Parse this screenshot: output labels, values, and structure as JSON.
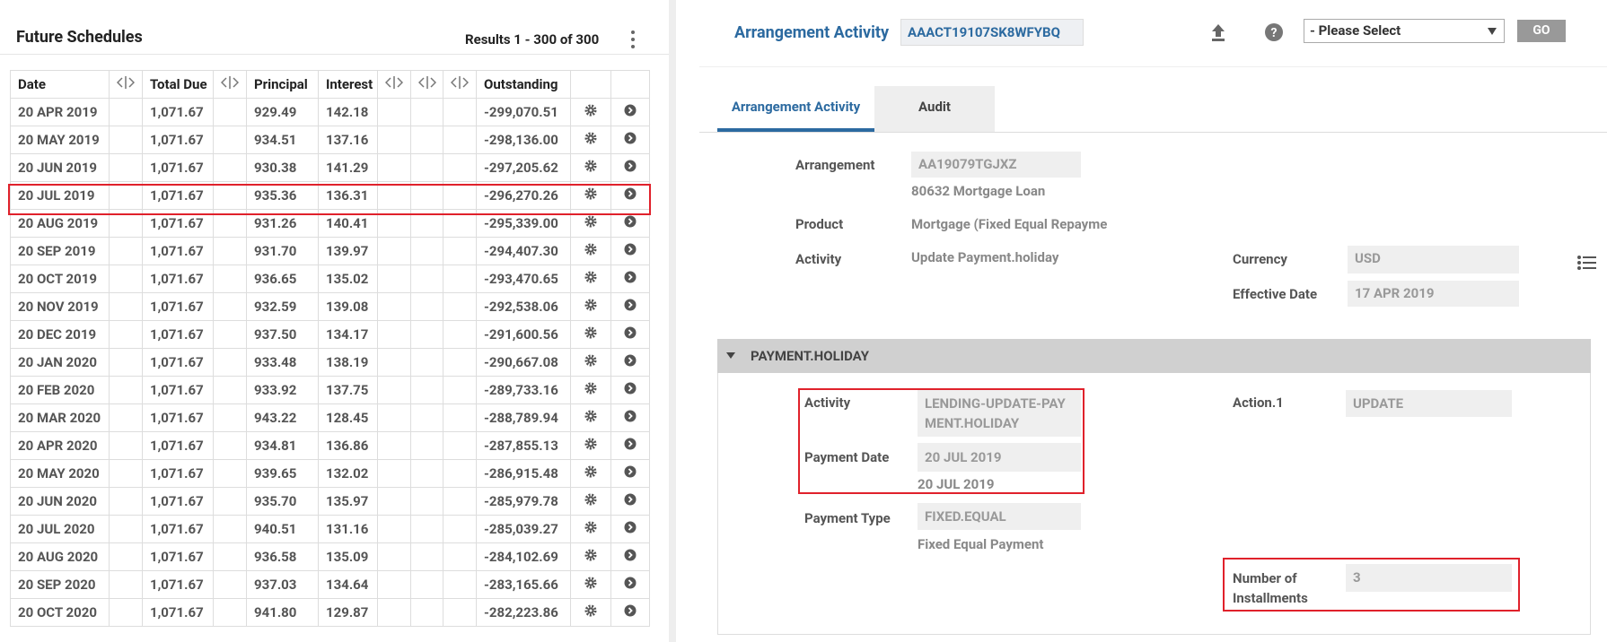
{
  "left_panel": {
    "title": "Future Schedules",
    "results": "Results 1 - 300 of 300",
    "table": {
      "columns": [
        "Date",
        "Total Due",
        "Principal",
        "Interest",
        "Outstanding"
      ],
      "rows": [
        [
          "20 APR 2019",
          "1,071.67",
          "929.49",
          "142.18",
          "-299,070.51"
        ],
        [
          "20 MAY 2019",
          "1,071.67",
          "934.51",
          "137.16",
          "-298,136.00"
        ],
        [
          "20 JUN 2019",
          "1,071.67",
          "930.38",
          "141.29",
          "-297,205.62"
        ],
        [
          "20 JUL 2019",
          "1,071.67",
          "935.36",
          "136.31",
          "-296,270.26"
        ],
        [
          "20 AUG 2019",
          "1,071.67",
          "931.26",
          "140.41",
          "-295,339.00"
        ],
        [
          "20 SEP 2019",
          "1,071.67",
          "931.70",
          "139.97",
          "-294,407.30"
        ],
        [
          "20 OCT 2019",
          "1,071.67",
          "936.65",
          "135.02",
          "-293,470.65"
        ],
        [
          "20 NOV 2019",
          "1,071.67",
          "932.59",
          "139.08",
          "-292,538.06"
        ],
        [
          "20 DEC 2019",
          "1,071.67",
          "937.50",
          "134.17",
          "-291,600.56"
        ],
        [
          "20 JAN 2020",
          "1,071.67",
          "933.48",
          "138.19",
          "-290,667.08"
        ],
        [
          "20 FEB 2020",
          "1,071.67",
          "933.92",
          "137.75",
          "-289,733.16"
        ],
        [
          "20 MAR 2020",
          "1,071.67",
          "943.22",
          "128.45",
          "-288,789.94"
        ],
        [
          "20 APR 2020",
          "1,071.67",
          "934.81",
          "136.86",
          "-287,855.13"
        ],
        [
          "20 MAY 2020",
          "1,071.67",
          "939.65",
          "132.02",
          "-286,915.48"
        ],
        [
          "20 JUN 2020",
          "1,071.67",
          "935.70",
          "135.97",
          "-285,979.78"
        ],
        [
          "20 JUL 2020",
          "1,071.67",
          "940.51",
          "131.16",
          "-285,039.27"
        ],
        [
          "20 AUG 2020",
          "1,071.67",
          "936.58",
          "135.09",
          "-284,102.69"
        ],
        [
          "20 SEP 2020",
          "1,071.67",
          "937.03",
          "134.64",
          "-283,165.66"
        ],
        [
          "20 OCT 2020",
          "1,071.67",
          "941.80",
          "129.87",
          "-282,223.86"
        ]
      ]
    }
  },
  "right_panel": {
    "title": "Arrangement Activity",
    "activity_id": "AAACT19107SK8WFYBQ",
    "select": "- Please Select",
    "button": "GO",
    "tabs": [
      "Arrangement Activity",
      "Audit"
    ],
    "fields": {
      "arrangement": {
        "label": "Arrangement",
        "value": "AA19079TGJXZ",
        "sub": "80632 Mortgage Loan"
      },
      "product": {
        "label": "Product",
        "value": "Mortgage (Fixed Equal Repayme"
      },
      "activity": {
        "label": "Activity",
        "value": "Update Payment.holiday"
      },
      "currency": {
        "label": "Currency",
        "value": "USD"
      },
      "effective_date": {
        "label": "Effective Date",
        "value": "17 APR 2019"
      }
    },
    "section": {
      "title": "PAYMENT.HOLIDAY",
      "activity": {
        "label": "Activity",
        "value": "LENDING-UPDATE-PAYMENT.HOLIDAY"
      },
      "payment_date": {
        "label": "Payment Date",
        "value": "20 JUL 2019",
        "sub": "20 JUL 2019"
      },
      "payment_type": {
        "label": "Payment Type",
        "value": "FIXED.EQUAL",
        "sub": "Fixed Equal Payment"
      },
      "action": {
        "label": "Action.1",
        "value": "UPDATE"
      },
      "installments": {
        "label": "Number of Installments",
        "value": "3"
      }
    }
  }
}
